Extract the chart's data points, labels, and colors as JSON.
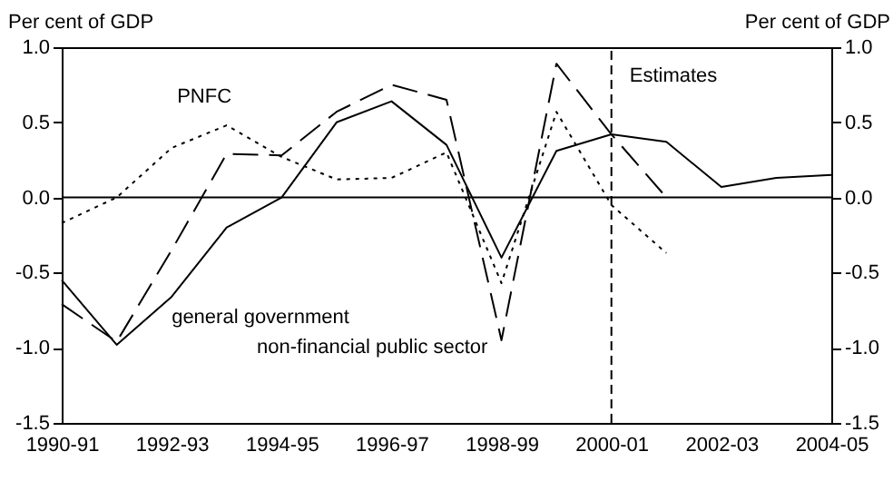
{
  "chart_data": {
    "type": "line",
    "ylabel": "Per cent of GDP",
    "y2label": "Per cent of GDP",
    "categories": [
      "1990-91",
      null,
      "1992-93",
      null,
      "1994-95",
      null,
      "1996-97",
      null,
      "1998-99",
      null,
      "2000-01",
      null,
      "2002-03",
      null,
      "2004-05"
    ],
    "series": [
      {
        "name": "general government",
        "color": "#000000",
        "line_style": "solid",
        "values": [
          -0.55,
          -0.98,
          -0.66,
          -0.2,
          0.0,
          0.5,
          0.64,
          0.35,
          -0.4,
          0.31,
          0.42,
          0.37,
          0.07,
          0.13,
          0.15
        ]
      },
      {
        "name": "non-financial public sector",
        "color": "#000000",
        "line_style": "dashed",
        "values": [
          -0.71,
          -0.96,
          -0.35,
          0.29,
          0.28,
          0.57,
          0.75,
          0.65,
          -0.95,
          0.89,
          0.42,
          0.0,
          null,
          null,
          null
        ]
      },
      {
        "name": "PNFC",
        "color": "#000000",
        "line_style": "dotted",
        "values": [
          -0.17,
          0.0,
          0.33,
          0.48,
          0.27,
          0.12,
          0.13,
          0.3,
          -0.57,
          0.57,
          -0.05,
          -0.37,
          null,
          null,
          null
        ]
      }
    ],
    "ylim": [
      -1.5,
      1.0
    ],
    "yticks": [
      {
        "value": -1.5,
        "label": "-1.5"
      },
      {
        "value": -1.0,
        "label": "-1.0"
      },
      {
        "value": -0.5,
        "label": "-0.5"
      },
      {
        "value": 0,
        "label": "0.0"
      },
      {
        "value": 0.5,
        "label": "0.5"
      },
      {
        "value": 1.0,
        "label": "1.0"
      }
    ],
    "y2lim": [
      -1.5,
      1.0
    ],
    "y2ticks": [
      {
        "value": -1.5,
        "label": "-1.5"
      },
      {
        "value": -1.0,
        "label": "-1.0"
      },
      {
        "value": -0.5,
        "label": "-0.5"
      },
      {
        "value": 0,
        "label": "0.0"
      },
      {
        "value": 0.5,
        "label": "0.5"
      },
      {
        "value": 1.0,
        "label": "1.0"
      }
    ],
    "ref_lines": [
      {
        "axis": "x",
        "value": "2000-01",
        "label": "Estimates",
        "line_style": "dashed",
        "color": "#000000"
      },
      {
        "axis": "y",
        "value": 0,
        "color": "#000000",
        "line_style": "solid"
      }
    ]
  }
}
